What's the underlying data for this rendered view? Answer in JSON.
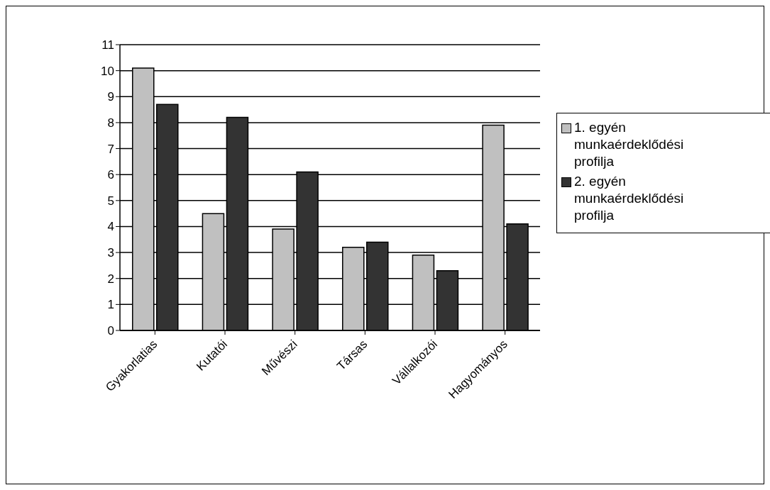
{
  "chart_data": {
    "type": "bar",
    "categories": [
      "Gyakorlatias",
      "Kutatói",
      "Művészi",
      "Társas",
      "Vállalkozói",
      "Hagyományos"
    ],
    "series": [
      {
        "name": "1. egyén munkaérdeklődési profilja",
        "color": "#c0c0c0",
        "values": [
          10.1,
          4.5,
          3.9,
          3.2,
          2.9,
          7.9
        ]
      },
      {
        "name": "2. egyén munkaérdeklődési profilja",
        "color": "#333333",
        "values": [
          8.7,
          8.2,
          6.1,
          3.4,
          2.3,
          4.1
        ]
      }
    ],
    "ylim": [
      0,
      11
    ],
    "yticks": [
      0,
      1,
      2,
      3,
      4,
      5,
      6,
      7,
      8,
      9,
      10,
      11
    ],
    "grid": "y",
    "legend": "right"
  }
}
